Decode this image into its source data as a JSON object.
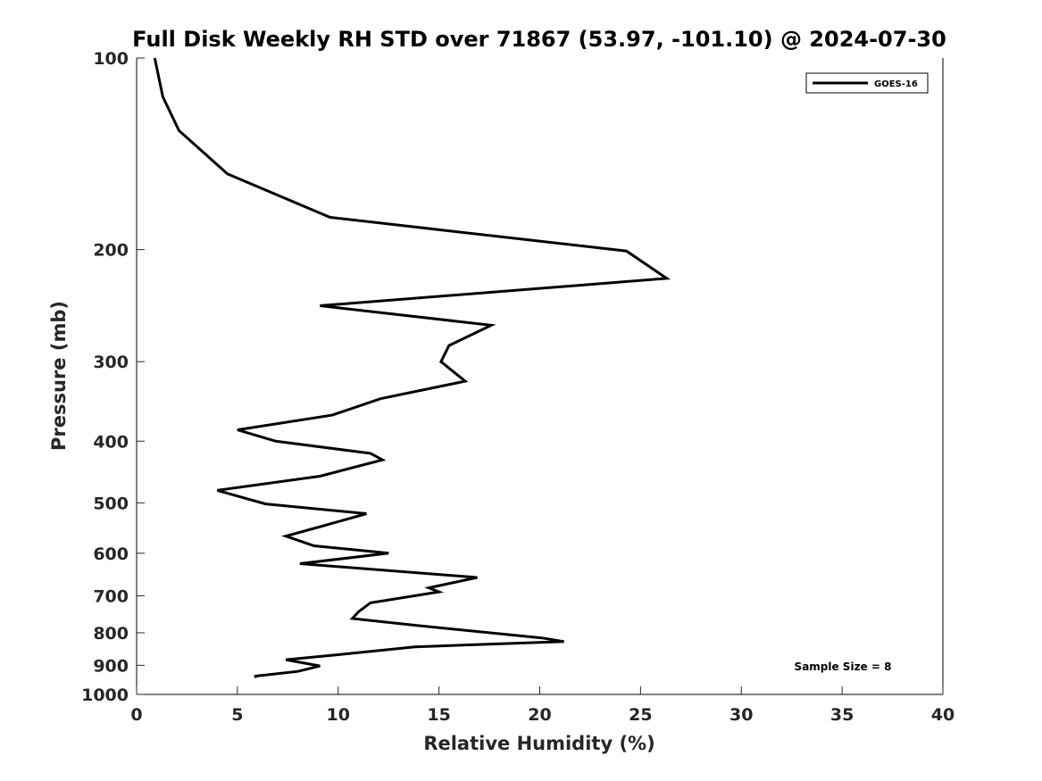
{
  "chart_data": {
    "type": "line",
    "title": "Full Disk Weekly RH STD over 71867 (53.97, -101.10) @ 2024-07-30",
    "xlabel": "Relative Humidity (%)",
    "ylabel": "Pressure (mb)",
    "xlim": [
      0,
      40
    ],
    "ylim": [
      100,
      1000
    ],
    "y_scale": "log",
    "y_reversed": true,
    "grid": false,
    "legend_position": "top-right",
    "x_ticks": [
      0,
      5,
      10,
      15,
      20,
      25,
      30,
      35,
      40
    ],
    "y_ticks": [
      100,
      200,
      300,
      400,
      500,
      600,
      700,
      800,
      900,
      1000
    ],
    "annotation": "Sample Size = 8",
    "series": [
      {
        "name": "GOES-16",
        "color": "#000000",
        "x": [
          0.9,
          1.3,
          2.1,
          4.5,
          9.6,
          24.3,
          26.3,
          9.1,
          17.6,
          15.5,
          15.1,
          16.3,
          12.1,
          9.7,
          5.0,
          6.9,
          11.6,
          12.2,
          9.1,
          4.0,
          6.4,
          11.4,
          9.2,
          7.4,
          8.8,
          12.5,
          8.1,
          16.9,
          14.5,
          15.0,
          11.6,
          11.0,
          10.7,
          13.7,
          20.1,
          21.2,
          13.8,
          10.0,
          7.4,
          9.1,
          8.0,
          5.9,
          5.9
        ],
        "y": [
          100,
          115,
          130,
          152,
          178,
          201,
          222,
          245,
          263,
          283,
          300,
          322,
          343,
          364,
          384,
          400,
          418,
          428,
          454,
          478,
          502,
          520,
          544,
          564,
          584,
          600,
          623,
          655,
          680,
          690,
          718,
          742,
          760,
          778,
          815,
          826,
          842,
          866,
          882,
          902,
          920,
          936,
          942
        ]
      }
    ]
  }
}
